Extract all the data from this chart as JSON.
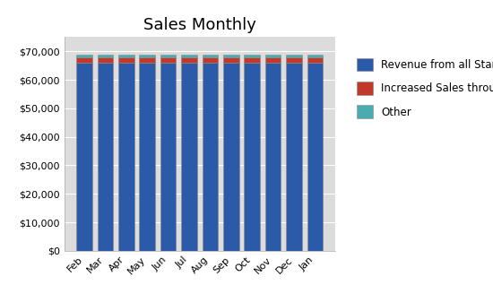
{
  "title": "Sales Monthly",
  "months": [
    "Feb",
    "Mar",
    "Apr",
    "May",
    "Jun",
    "Jul",
    "Aug",
    "Sep",
    "Oct",
    "Nov",
    "Dec",
    "Jan"
  ],
  "revenue_standard": [
    66000,
    66000,
    66000,
    66000,
    66000,
    66000,
    66000,
    66000,
    66000,
    66000,
    66000,
    66000
  ],
  "revenue_website": [
    1800,
    1800,
    1800,
    1800,
    1800,
    1800,
    1800,
    1800,
    1800,
    1800,
    1800,
    1800
  ],
  "revenue_other": [
    900,
    900,
    900,
    900,
    900,
    900,
    900,
    900,
    900,
    900,
    900,
    900
  ],
  "color_standard": "#2B5BA8",
  "color_website": "#C0392B",
  "color_other": "#4AACB0",
  "legend_standard": "Revenue from all Standard Strea",
  "legend_website": "Increased Sales through websitе",
  "legend_other": "Other",
  "ylim": [
    0,
    75000
  ],
  "yticks": [
    0,
    10000,
    20000,
    30000,
    40000,
    50000,
    60000,
    70000
  ],
  "background_color": "#FFFFFF",
  "plot_bg_color": "#DCDCDC",
  "bar_edge_color": "#888888",
  "title_fontsize": 13,
  "legend_fontsize": 8.5,
  "tick_fontsize": 8
}
